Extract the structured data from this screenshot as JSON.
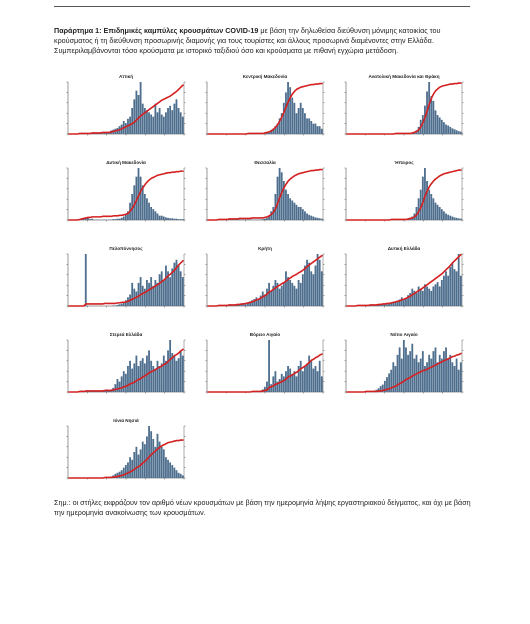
{
  "document": {
    "intro_lead": "Παράρτημα 1: Επιδημικές καμπύλες κρουσμάτων COVID-19",
    "intro_rest": " με βάση την δηλωθείσα διεύθυνση μόνιμης κατοικίας του κρούσματος ή τη διεύθυνση προσωρινής διαμονής για τους τουρίστες και άλλους προσωρινά διαμένοντες στην Ελλάδα. Συμπεριλαμβάνονται τόσο κρούσματα με ιστορικό ταξιδιού όσο και κρούσματα με πιθανή εγχώρια μετάδοση.",
    "note": "Σημ.: οι στήλες εκφράζουν τον αριθμό νέων κρουσμάτων με βάση την ημερομηνία λήψης εργαστηριακού δείγματος, και όχι με βάση την ημερομηνία ανακοίνωσης των κρουσμάτων."
  },
  "colors": {
    "bars": "#4e6e8e",
    "line": "#d42020",
    "axis": "#333333"
  },
  "chart_data": [
    {
      "type": "bar",
      "title": "Αττική",
      "bars": [
        0,
        0,
        0,
        0,
        0,
        1,
        1,
        1,
        1,
        1,
        1,
        1,
        1,
        2,
        2,
        3,
        2,
        3,
        4,
        5,
        8,
        10,
        12,
        14,
        18,
        22,
        30,
        25,
        35,
        40,
        60,
        80,
        100,
        90,
        120,
        70,
        60,
        55,
        50,
        45,
        40,
        70,
        50,
        60,
        45,
        40,
        50,
        60,
        65,
        55,
        70,
        80,
        60,
        50,
        40
      ],
      "line": [
        0,
        0,
        0,
        0,
        0,
        1,
        1,
        1,
        1,
        1,
        1,
        2,
        2,
        2,
        2,
        2,
        3,
        3,
        3,
        3,
        4,
        5,
        6,
        7,
        8,
        10,
        12,
        14,
        16,
        18,
        20,
        23,
        27,
        31,
        35,
        38,
        41,
        44,
        47,
        50,
        53,
        56,
        59,
        62,
        65,
        67,
        69,
        71,
        73,
        76,
        79,
        82,
        86,
        90,
        94
      ]
    },
    {
      "type": "bar",
      "title": "Κεντρική Μακεδονία",
      "bars": [
        0,
        0,
        0,
        0,
        0,
        0,
        0,
        0,
        0,
        0,
        0,
        0,
        0,
        0,
        0,
        0,
        0,
        0,
        0,
        1,
        1,
        1,
        1,
        1,
        1,
        1,
        1,
        2,
        3,
        5,
        8,
        10,
        15,
        20,
        30,
        40,
        60,
        80,
        100,
        90,
        70,
        60,
        40,
        50,
        60,
        50,
        40,
        30,
        30,
        25,
        20,
        20,
        15,
        15,
        10
      ],
      "line": [
        0,
        0,
        0,
        0,
        0,
        0,
        0,
        0,
        0,
        0,
        0,
        0,
        0,
        0,
        0,
        0,
        0,
        0,
        0,
        1,
        1,
        1,
        1,
        1,
        1,
        1,
        1,
        2,
        3,
        4,
        6,
        9,
        13,
        18,
        25,
        33,
        42,
        52,
        62,
        70,
        77,
        82,
        86,
        88,
        90,
        91,
        92,
        93,
        94,
        95,
        95,
        96,
        96,
        97,
        97
      ]
    },
    {
      "type": "bar",
      "title": "Ανατολική Μακεδονία και Θράκη",
      "bars": [
        0,
        0,
        0,
        0,
        0,
        0,
        0,
        0,
        0,
        0,
        0,
        0,
        0,
        0,
        0,
        0,
        0,
        0,
        0,
        0,
        0,
        0,
        0,
        1,
        1,
        1,
        1,
        1,
        1,
        1,
        2,
        3,
        5,
        8,
        15,
        30,
        40,
        60,
        90,
        110,
        80,
        70,
        50,
        40,
        35,
        30,
        25,
        20,
        18,
        15,
        12,
        10,
        8,
        6,
        5
      ],
      "line": [
        0,
        0,
        0,
        0,
        0,
        0,
        0,
        0,
        0,
        0,
        0,
        0,
        0,
        0,
        0,
        0,
        0,
        0,
        0,
        0,
        0,
        0,
        0,
        1,
        1,
        1,
        1,
        1,
        1,
        1,
        1,
        2,
        3,
        5,
        8,
        14,
        22,
        32,
        45,
        58,
        69,
        77,
        83,
        87,
        90,
        92,
        93,
        94,
        95,
        96,
        96,
        97,
        97,
        98,
        98
      ]
    },
    {
      "type": "bar",
      "title": "Δυτική Μακεδονία",
      "bars": [
        0,
        0,
        0,
        0,
        0,
        1,
        2,
        3,
        4,
        5,
        2,
        3,
        1,
        1,
        1,
        0,
        1,
        1,
        0,
        1,
        1,
        2,
        2,
        3,
        3,
        5,
        8,
        12,
        20,
        40,
        60,
        80,
        100,
        120,
        100,
        80,
        60,
        50,
        40,
        30,
        25,
        20,
        15,
        10,
        10,
        8,
        6,
        5,
        4,
        4,
        3,
        3,
        2,
        2,
        2
      ],
      "line": [
        0,
        0,
        0,
        0,
        0,
        1,
        2,
        3,
        4,
        5,
        5,
        6,
        6,
        6,
        6,
        6,
        7,
        7,
        7,
        7,
        7,
        8,
        8,
        8,
        9,
        9,
        10,
        11,
        13,
        17,
        23,
        30,
        38,
        47,
        55,
        62,
        68,
        73,
        77,
        80,
        82,
        84,
        86,
        87,
        88,
        89,
        90,
        91,
        91,
        92,
        92,
        93,
        93,
        94,
        94
      ]
    },
    {
      "type": "bar",
      "title": "Θεσσαλία",
      "bars": [
        0,
        0,
        0,
        0,
        0,
        1,
        1,
        1,
        1,
        1,
        1,
        1,
        1,
        1,
        1,
        1,
        1,
        1,
        1,
        1,
        1,
        1,
        1,
        1,
        1,
        1,
        2,
        3,
        5,
        10,
        20,
        30,
        60,
        100,
        120,
        110,
        90,
        70,
        60,
        50,
        45,
        40,
        35,
        30,
        30,
        25,
        20,
        15,
        12,
        10,
        8,
        6,
        5,
        4,
        3
      ],
      "line": [
        0,
        0,
        0,
        0,
        0,
        1,
        1,
        1,
        1,
        1,
        2,
        2,
        2,
        2,
        2,
        3,
        3,
        3,
        3,
        3,
        3,
        4,
        4,
        4,
        4,
        4,
        4,
        5,
        6,
        8,
        11,
        15,
        22,
        32,
        43,
        53,
        62,
        69,
        75,
        79,
        82,
        85,
        87,
        89,
        90,
        91,
        92,
        93,
        94,
        95,
        95,
        96,
        96,
        97,
        97
      ]
    },
    {
      "type": "bar",
      "title": "Ήπειρος",
      "bars": [
        0,
        0,
        0,
        0,
        0,
        0,
        0,
        0,
        0,
        0,
        0,
        0,
        0,
        0,
        0,
        0,
        0,
        0,
        0,
        0,
        0,
        1,
        1,
        1,
        1,
        1,
        1,
        1,
        2,
        3,
        5,
        8,
        15,
        30,
        50,
        70,
        100,
        120,
        90,
        70,
        60,
        50,
        40,
        35,
        30,
        25,
        20,
        15,
        12,
        10,
        8,
        6,
        5,
        4,
        3
      ],
      "line": [
        0,
        0,
        0,
        0,
        0,
        0,
        0,
        0,
        0,
        0,
        0,
        0,
        0,
        0,
        0,
        0,
        0,
        0,
        0,
        0,
        0,
        1,
        1,
        1,
        1,
        1,
        1,
        1,
        1,
        2,
        3,
        4,
        6,
        10,
        16,
        24,
        34,
        46,
        56,
        64,
        70,
        75,
        79,
        82,
        85,
        87,
        89,
        90,
        91,
        92,
        93,
        94,
        95,
        96,
        96
      ]
    },
    {
      "type": "bar",
      "title": "Πελοπόννησος",
      "bars": [
        0,
        0,
        0,
        0,
        0,
        0,
        0,
        0,
        90,
        0,
        0,
        0,
        0,
        0,
        0,
        0,
        0,
        0,
        0,
        0,
        0,
        1,
        1,
        2,
        3,
        4,
        6,
        10,
        15,
        20,
        40,
        30,
        25,
        40,
        50,
        35,
        30,
        45,
        40,
        50,
        35,
        45,
        40,
        55,
        60,
        45,
        70,
        60,
        50,
        65,
        75,
        80,
        70,
        60,
        50
      ],
      "line": [
        0,
        0,
        0,
        0,
        0,
        0,
        0,
        0,
        4,
        4,
        4,
        4,
        4,
        4,
        4,
        4,
        4,
        5,
        5,
        5,
        5,
        5,
        5,
        6,
        6,
        7,
        7,
        8,
        9,
        11,
        13,
        15,
        17,
        19,
        22,
        24,
        26,
        29,
        31,
        34,
        36,
        39,
        41,
        44,
        47,
        50,
        54,
        58,
        61,
        65,
        69,
        74,
        79,
        83,
        87
      ]
    },
    {
      "type": "bar",
      "title": "Κρήτη",
      "bars": [
        0,
        0,
        0,
        0,
        0,
        1,
        1,
        1,
        1,
        1,
        1,
        1,
        1,
        1,
        2,
        3,
        4,
        5,
        3,
        5,
        8,
        10,
        12,
        15,
        12,
        18,
        25,
        20,
        30,
        40,
        25,
        35,
        45,
        40,
        30,
        35,
        40,
        60,
        50,
        45,
        40,
        35,
        30,
        45,
        40,
        55,
        70,
        80,
        75,
        60,
        55,
        70,
        90,
        80,
        60
      ],
      "line": [
        0,
        0,
        0,
        0,
        0,
        1,
        1,
        1,
        1,
        1,
        2,
        2,
        2,
        2,
        3,
        3,
        4,
        4,
        5,
        6,
        7,
        8,
        10,
        12,
        13,
        15,
        18,
        20,
        23,
        27,
        29,
        32,
        35,
        38,
        40,
        43,
        45,
        48,
        51,
        54,
        57,
        59,
        61,
        64,
        66,
        69,
        72,
        76,
        79,
        82,
        85,
        88,
        91,
        94,
        97
      ]
    },
    {
      "type": "bar",
      "title": "Δυτική Ελλάδα",
      "bars": [
        0,
        0,
        0,
        0,
        0,
        1,
        1,
        1,
        1,
        1,
        1,
        1,
        1,
        1,
        2,
        3,
        3,
        4,
        5,
        4,
        5,
        6,
        8,
        10,
        12,
        15,
        20,
        15,
        18,
        25,
        30,
        40,
        35,
        30,
        45,
        40,
        35,
        50,
        45,
        40,
        35,
        45,
        50,
        55,
        45,
        60,
        70,
        80,
        70,
        90,
        100,
        85,
        80,
        120,
        70
      ],
      "line": [
        0,
        0,
        0,
        0,
        0,
        1,
        1,
        1,
        1,
        1,
        1,
        2,
        2,
        2,
        2,
        3,
        3,
        4,
        4,
        5,
        5,
        6,
        7,
        8,
        9,
        10,
        12,
        13,
        15,
        17,
        19,
        22,
        24,
        27,
        30,
        32,
        35,
        38,
        41,
        44,
        47,
        50,
        53,
        56,
        59,
        62,
        66,
        70,
        74,
        78,
        83,
        87,
        91,
        95,
        99
      ]
    },
    {
      "type": "bar",
      "title": "Στερεά Ελλάδα",
      "bars": [
        0,
        0,
        0,
        0,
        0,
        2,
        3,
        2,
        1,
        1,
        1,
        1,
        1,
        1,
        1,
        1,
        2,
        3,
        5,
        3,
        5,
        8,
        15,
        25,
        20,
        30,
        40,
        35,
        50,
        60,
        45,
        55,
        70,
        50,
        60,
        65,
        55,
        70,
        80,
        60,
        50,
        45,
        60,
        50,
        55,
        70,
        60,
        80,
        100,
        75,
        70,
        60,
        65,
        80,
        70
      ],
      "line": [
        0,
        0,
        0,
        0,
        0,
        1,
        1,
        1,
        2,
        2,
        2,
        2,
        2,
        2,
        2,
        2,
        2,
        3,
        3,
        3,
        3,
        4,
        5,
        6,
        7,
        8,
        10,
        11,
        13,
        16,
        17,
        19,
        22,
        24,
        26,
        29,
        31,
        34,
        37,
        39,
        41,
        43,
        46,
        48,
        50,
        53,
        55,
        59,
        63,
        66,
        70,
        72,
        75,
        79,
        82
      ]
    },
    {
      "type": "bar",
      "title": "Βόρειο Αιγαίο",
      "bars": [
        0,
        0,
        0,
        0,
        0,
        0,
        0,
        0,
        0,
        0,
        0,
        0,
        0,
        0,
        0,
        0,
        0,
        0,
        0,
        0,
        0,
        1,
        1,
        1,
        2,
        3,
        5,
        10,
        20,
        100,
        15,
        30,
        40,
        20,
        25,
        35,
        30,
        40,
        50,
        45,
        35,
        40,
        30,
        50,
        60,
        40,
        50,
        55,
        70,
        60,
        45,
        50,
        40,
        60,
        30
      ],
      "line": [
        0,
        0,
        0,
        0,
        0,
        0,
        0,
        0,
        0,
        0,
        0,
        0,
        0,
        0,
        0,
        0,
        0,
        0,
        0,
        0,
        0,
        1,
        1,
        1,
        1,
        1,
        2,
        3,
        4,
        9,
        10,
        12,
        15,
        16,
        18,
        20,
        22,
        25,
        29,
        31,
        33,
        36,
        38,
        41,
        45,
        47,
        50,
        53,
        57,
        61,
        63,
        66,
        68,
        71,
        73
      ]
    },
    {
      "type": "bar",
      "title": "Νότιο Αιγαίο",
      "bars": [
        0,
        0,
        0,
        0,
        0,
        0,
        0,
        0,
        0,
        1,
        1,
        1,
        1,
        2,
        3,
        5,
        8,
        10,
        15,
        20,
        25,
        30,
        40,
        35,
        50,
        60,
        45,
        70,
        60,
        50,
        55,
        65,
        45,
        50,
        40,
        45,
        55,
        35,
        40,
        50,
        45,
        55,
        60,
        40,
        50,
        45,
        55,
        60,
        45,
        50,
        40,
        35,
        45,
        30,
        40
      ],
      "line": [
        0,
        0,
        0,
        0,
        0,
        0,
        0,
        0,
        0,
        1,
        1,
        1,
        1,
        1,
        1,
        2,
        2,
        3,
        4,
        5,
        6,
        8,
        10,
        11,
        14,
        16,
        18,
        21,
        24,
        26,
        28,
        31,
        33,
        35,
        37,
        39,
        41,
        42,
        44,
        46,
        48,
        50,
        52,
        54,
        56,
        58,
        60,
        62,
        64,
        66,
        68,
        69,
        71,
        72,
        74
      ]
    },
    {
      "type": "bar",
      "title": "Ιόνια Νησιά",
      "bars": [
        0,
        0,
        0,
        0,
        0,
        0,
        0,
        0,
        0,
        0,
        0,
        0,
        0,
        0,
        0,
        0,
        0,
        1,
        1,
        2,
        3,
        5,
        8,
        10,
        12,
        15,
        20,
        25,
        30,
        40,
        35,
        50,
        60,
        45,
        55,
        70,
        65,
        80,
        100,
        90,
        75,
        60,
        85,
        70,
        60,
        55,
        40,
        35,
        30,
        25,
        20,
        15,
        10,
        8,
        5
      ],
      "line": [
        0,
        0,
        0,
        0,
        0,
        0,
        0,
        0,
        0,
        0,
        0,
        0,
        0,
        0,
        0,
        0,
        0,
        1,
        1,
        1,
        1,
        2,
        2,
        3,
        4,
        5,
        6,
        8,
        10,
        12,
        14,
        17,
        20,
        22,
        25,
        29,
        32,
        36,
        41,
        45,
        49,
        52,
        56,
        59,
        62,
        64,
        66,
        68,
        69,
        70,
        71,
        72,
        72,
        73,
        73
      ]
    }
  ]
}
